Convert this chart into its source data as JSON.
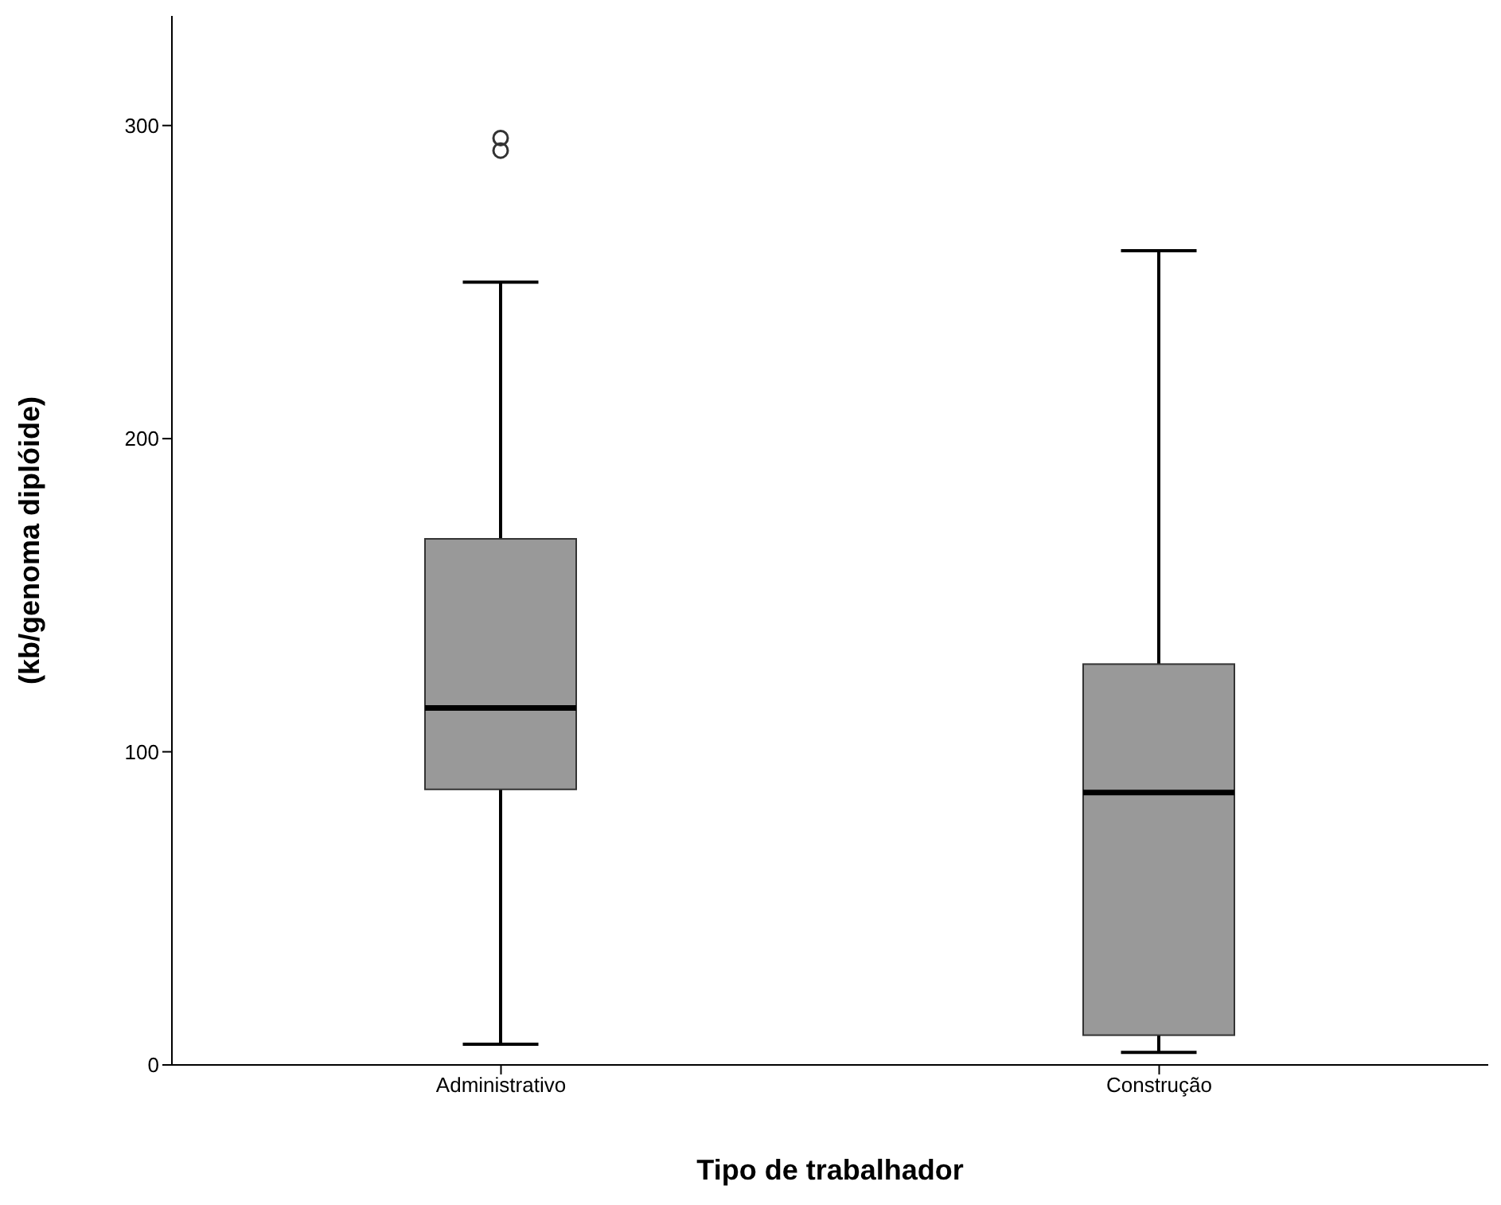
{
  "chart_data": {
    "type": "box",
    "xlabel": "Tipo de trabalhador",
    "ylabel": "(kb/genoma diplóide)",
    "categories": [
      "Administrativo",
      "Construção"
    ],
    "boxes": [
      {
        "low": 6.6,
        "q1": 88,
        "median": 114,
        "q3": 168,
        "high": 250,
        "outliers": [
          292,
          296
        ]
      },
      {
        "low": 4,
        "q1": 9.5,
        "median": 87,
        "q3": 128,
        "high": 260
      }
    ],
    "color": "#999999",
    "ylim": [
      0,
      335
    ],
    "yticks": [
      0,
      100,
      200,
      300
    ],
    "grid": false,
    "legend": false
  }
}
